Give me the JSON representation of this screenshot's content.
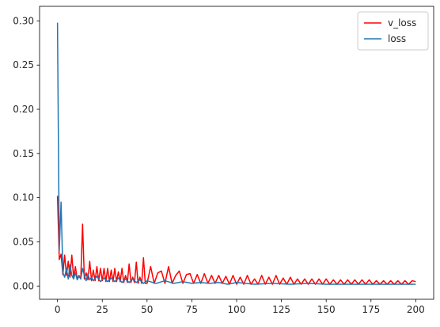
{
  "chart_data": {
    "type": "line",
    "title": "",
    "xlabel": "",
    "ylabel": "",
    "xlim": [
      -10,
      210
    ],
    "ylim": [
      -0.015,
      0.3165
    ],
    "xticks": [
      0,
      25,
      50,
      75,
      100,
      125,
      150,
      175,
      200
    ],
    "yticks": [
      0.0,
      0.05,
      0.1,
      0.15,
      0.2,
      0.25,
      0.3
    ],
    "xtick_labels": [
      "0",
      "25",
      "50",
      "75",
      "100",
      "125",
      "150",
      "175",
      "200"
    ],
    "ytick_labels": [
      "0.00",
      "0.05",
      "0.10",
      "0.15",
      "0.20",
      "0.25",
      "0.30"
    ],
    "grid": false,
    "legend": {
      "position": "top-right"
    },
    "series": [
      {
        "name": "v_loss",
        "color": "#ff0000",
        "x": [
          0,
          1,
          2,
          3,
          4,
          5,
          6,
          7,
          8,
          9,
          10,
          11,
          12,
          13,
          14,
          15,
          16,
          17,
          18,
          19,
          20,
          21,
          22,
          23,
          24,
          25,
          26,
          27,
          28,
          29,
          30,
          31,
          32,
          33,
          34,
          35,
          36,
          37,
          38,
          39,
          40,
          41,
          42,
          43,
          44,
          45,
          46,
          47,
          48,
          49,
          50,
          52,
          54,
          56,
          58,
          60,
          62,
          64,
          66,
          68,
          70,
          72,
          74,
          76,
          78,
          80,
          82,
          84,
          86,
          88,
          90,
          92,
          94,
          96,
          98,
          100,
          102,
          104,
          106,
          108,
          110,
          112,
          114,
          116,
          118,
          120,
          122,
          124,
          126,
          128,
          130,
          132,
          134,
          136,
          138,
          140,
          142,
          144,
          146,
          148,
          150,
          152,
          154,
          156,
          158,
          160,
          162,
          164,
          166,
          168,
          170,
          172,
          174,
          176,
          178,
          180,
          182,
          184,
          186,
          188,
          190,
          192,
          194,
          196,
          198,
          200
        ],
        "y": [
          0.102,
          0.03,
          0.036,
          0.013,
          0.035,
          0.012,
          0.028,
          0.01,
          0.035,
          0.01,
          0.022,
          0.008,
          0.012,
          0.008,
          0.07,
          0.008,
          0.015,
          0.007,
          0.028,
          0.006,
          0.018,
          0.006,
          0.022,
          0.006,
          0.02,
          0.006,
          0.02,
          0.005,
          0.02,
          0.005,
          0.018,
          0.005,
          0.02,
          0.005,
          0.016,
          0.005,
          0.02,
          0.004,
          0.012,
          0.004,
          0.025,
          0.004,
          0.01,
          0.004,
          0.027,
          0.003,
          0.01,
          0.003,
          0.032,
          0.003,
          0.003,
          0.022,
          0.003,
          0.015,
          0.017,
          0.003,
          0.022,
          0.003,
          0.012,
          0.017,
          0.003,
          0.013,
          0.014,
          0.003,
          0.013,
          0.003,
          0.014,
          0.003,
          0.012,
          0.003,
          0.012,
          0.003,
          0.011,
          0.002,
          0.012,
          0.002,
          0.01,
          0.002,
          0.012,
          0.002,
          0.008,
          0.002,
          0.012,
          0.002,
          0.01,
          0.002,
          0.012,
          0.002,
          0.009,
          0.002,
          0.01,
          0.002,
          0.008,
          0.002,
          0.008,
          0.002,
          0.008,
          0.002,
          0.008,
          0.002,
          0.008,
          0.002,
          0.007,
          0.002,
          0.007,
          0.002,
          0.007,
          0.002,
          0.007,
          0.002,
          0.007,
          0.002,
          0.007,
          0.002,
          0.006,
          0.002,
          0.006,
          0.002,
          0.006,
          0.002,
          0.006,
          0.002,
          0.006,
          0.002,
          0.006,
          0.005
        ]
      },
      {
        "name": "loss",
        "color": "#1f77b4",
        "x": [
          0,
          1,
          2,
          3,
          4,
          5,
          6,
          7,
          8,
          9,
          10,
          11,
          12,
          13,
          14,
          15,
          16,
          17,
          18,
          19,
          20,
          22,
          24,
          26,
          28,
          30,
          32,
          34,
          36,
          38,
          40,
          42,
          44,
          46,
          48,
          50,
          55,
          60,
          65,
          70,
          75,
          80,
          85,
          90,
          95,
          100,
          110,
          120,
          130,
          140,
          150,
          160,
          170,
          180,
          190,
          200
        ],
        "y": [
          0.298,
          0.04,
          0.095,
          0.015,
          0.01,
          0.02,
          0.008,
          0.024,
          0.012,
          0.008,
          0.015,
          0.007,
          0.011,
          0.008,
          0.02,
          0.012,
          0.006,
          0.014,
          0.007,
          0.01,
          0.006,
          0.011,
          0.005,
          0.009,
          0.005,
          0.009,
          0.005,
          0.009,
          0.004,
          0.008,
          0.004,
          0.008,
          0.004,
          0.007,
          0.003,
          0.006,
          0.003,
          0.006,
          0.003,
          0.005,
          0.003,
          0.004,
          0.003,
          0.004,
          0.002,
          0.004,
          0.002,
          0.003,
          0.002,
          0.003,
          0.002,
          0.002,
          0.002,
          0.002,
          0.002,
          0.002
        ]
      }
    ]
  }
}
